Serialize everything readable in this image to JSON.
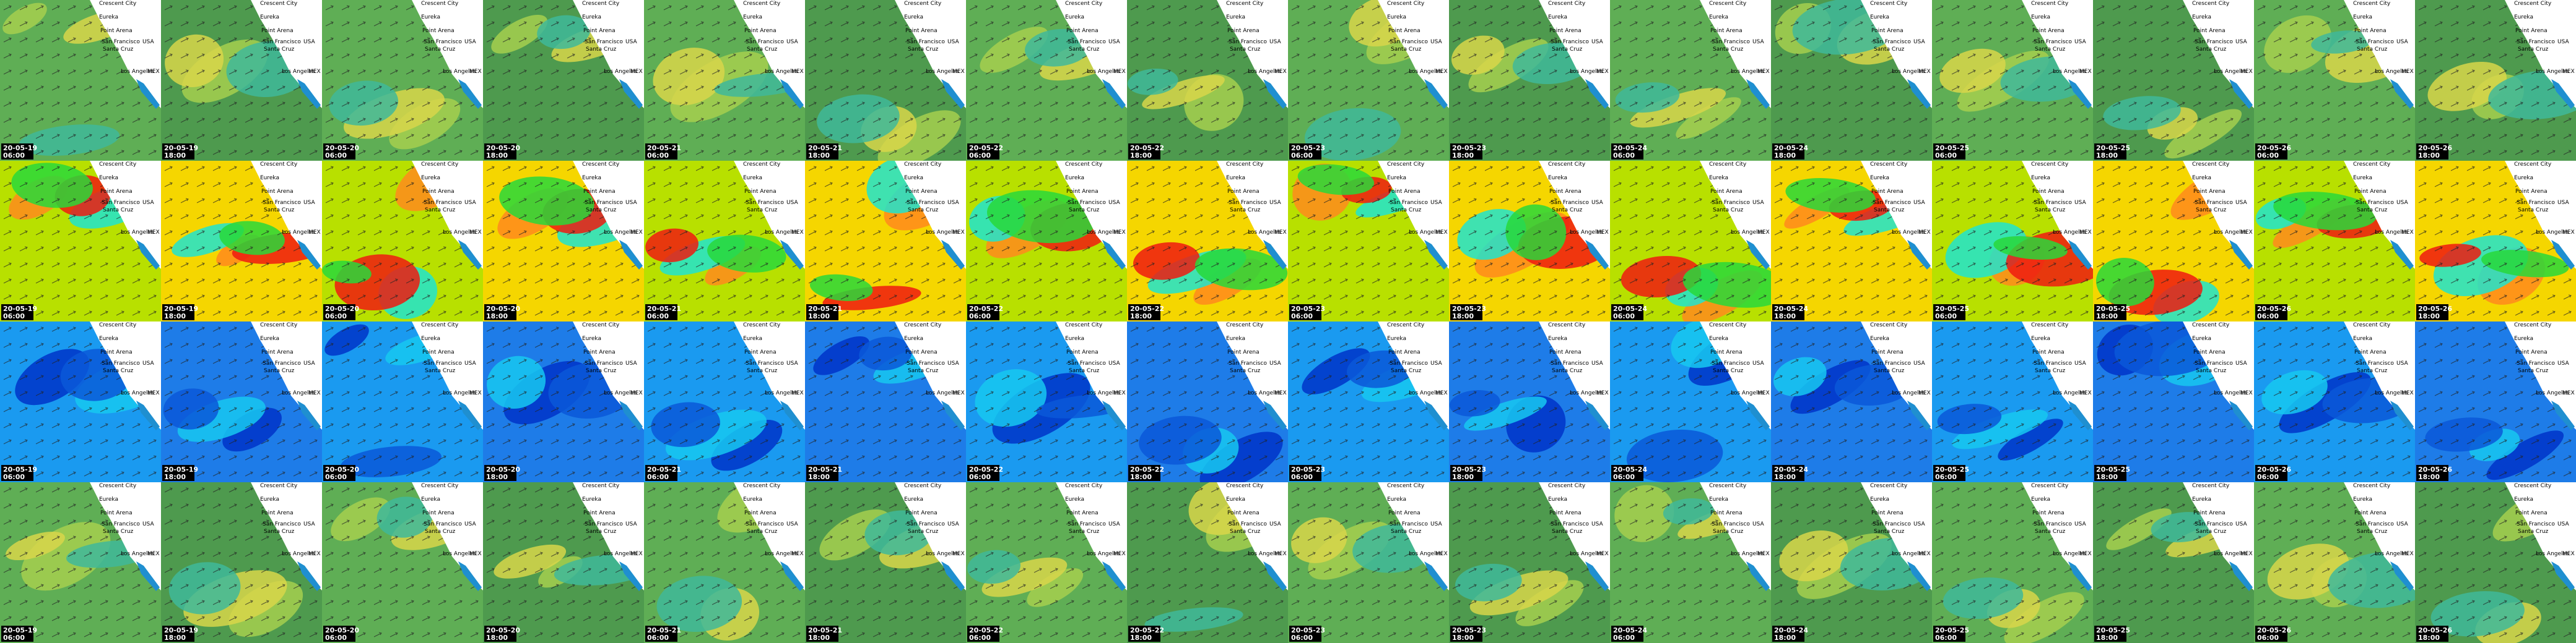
{
  "map_labels": [
    "Crescent City",
    "Eureka",
    "Point Arena",
    "San Francisco",
    "Santa Cruz",
    "Los Angeles",
    "USA",
    "MEX"
  ],
  "rows": [
    {
      "tiles": [
        {
          "date": "20-05-19",
          "time": "06:00"
        },
        {
          "date": "20-05-19",
          "time": "18:00"
        },
        {
          "date": "20-05-20",
          "time": "06:00"
        },
        {
          "date": "20-05-20",
          "time": "18:00"
        },
        {
          "date": "20-05-21",
          "time": "06:00"
        },
        {
          "date": "20-05-21",
          "time": "18:00"
        },
        {
          "date": "20-05-22",
          "time": "06:00"
        },
        {
          "date": "20-05-22",
          "time": "18:00"
        },
        {
          "date": "20-05-23",
          "time": "06:00"
        },
        {
          "date": "20-05-23",
          "time": "18:00"
        },
        {
          "date": "20-05-24",
          "time": "06:00"
        },
        {
          "date": "20-05-24",
          "time": "18:00"
        },
        {
          "date": "20-05-25",
          "time": "06:00"
        },
        {
          "date": "20-05-25",
          "time": "18:00"
        },
        {
          "date": "20-05-26",
          "time": "06:00"
        },
        {
          "date": "20-05-26",
          "time": "18:00"
        }
      ]
    },
    {
      "tiles": [
        {
          "date": "20-05-19",
          "time": "06:00"
        },
        {
          "date": "20-05-19",
          "time": "18:00"
        },
        {
          "date": "20-05-20",
          "time": "06:00"
        },
        {
          "date": "20-05-20",
          "time": "18:00"
        },
        {
          "date": "20-05-21",
          "time": "06:00"
        },
        {
          "date": "20-05-21",
          "time": "18:00"
        },
        {
          "date": "20-05-22",
          "time": "06:00"
        },
        {
          "date": "20-05-22",
          "time": "18:00"
        },
        {
          "date": "20-05-23",
          "time": "06:00"
        },
        {
          "date": "20-05-23",
          "time": "18:00"
        },
        {
          "date": "20-05-24",
          "time": "06:00"
        },
        {
          "date": "20-05-24",
          "time": "18:00"
        },
        {
          "date": "20-05-25",
          "time": "06:00"
        },
        {
          "date": "20-05-25",
          "time": "18:00"
        },
        {
          "date": "20-05-26",
          "time": "06:00"
        },
        {
          "date": "20-05-26",
          "time": "18:00"
        }
      ]
    },
    {
      "tiles": [
        {
          "date": "20-05-19",
          "time": "06:00"
        },
        {
          "date": "20-05-19",
          "time": "18:00"
        },
        {
          "date": "20-05-20",
          "time": "06:00"
        },
        {
          "date": "20-05-20",
          "time": "18:00"
        },
        {
          "date": "20-05-21",
          "time": "06:00"
        },
        {
          "date": "20-05-21",
          "time": "18:00"
        },
        {
          "date": "20-05-22",
          "time": "06:00"
        },
        {
          "date": "20-05-22",
          "time": "18:00"
        },
        {
          "date": "20-05-23",
          "time": "06:00"
        },
        {
          "date": "20-05-23",
          "time": "18:00"
        },
        {
          "date": "20-05-24",
          "time": "06:00"
        },
        {
          "date": "20-05-24",
          "time": "18:00"
        },
        {
          "date": "20-05-25",
          "time": "06:00"
        },
        {
          "date": "20-05-25",
          "time": "18:00"
        },
        {
          "date": "20-05-26",
          "time": "06:00"
        },
        {
          "date": "20-05-26",
          "time": "18:00"
        }
      ]
    },
    {
      "tiles": [
        {
          "date": "20-05-19",
          "time": "06:00"
        },
        {
          "date": "20-05-19",
          "time": "18:00"
        },
        {
          "date": "20-05-20",
          "time": "06:00"
        },
        {
          "date": "20-05-20",
          "time": "18:00"
        },
        {
          "date": "20-05-21",
          "time": "06:00"
        },
        {
          "date": "20-05-21",
          "time": "18:00"
        },
        {
          "date": "20-05-22",
          "time": "06:00"
        },
        {
          "date": "20-05-22",
          "time": "18:00"
        },
        {
          "date": "20-05-23",
          "time": "06:00"
        },
        {
          "date": "20-05-23",
          "time": "18:00"
        },
        {
          "date": "20-05-24",
          "time": "06:00"
        },
        {
          "date": "20-05-24",
          "time": "18:00"
        },
        {
          "date": "20-05-25",
          "time": "06:00"
        },
        {
          "date": "20-05-25",
          "time": "18:00"
        },
        {
          "date": "20-05-26",
          "time": "06:00"
        },
        {
          "date": "20-05-26",
          "time": "18:00"
        }
      ]
    }
  ]
}
